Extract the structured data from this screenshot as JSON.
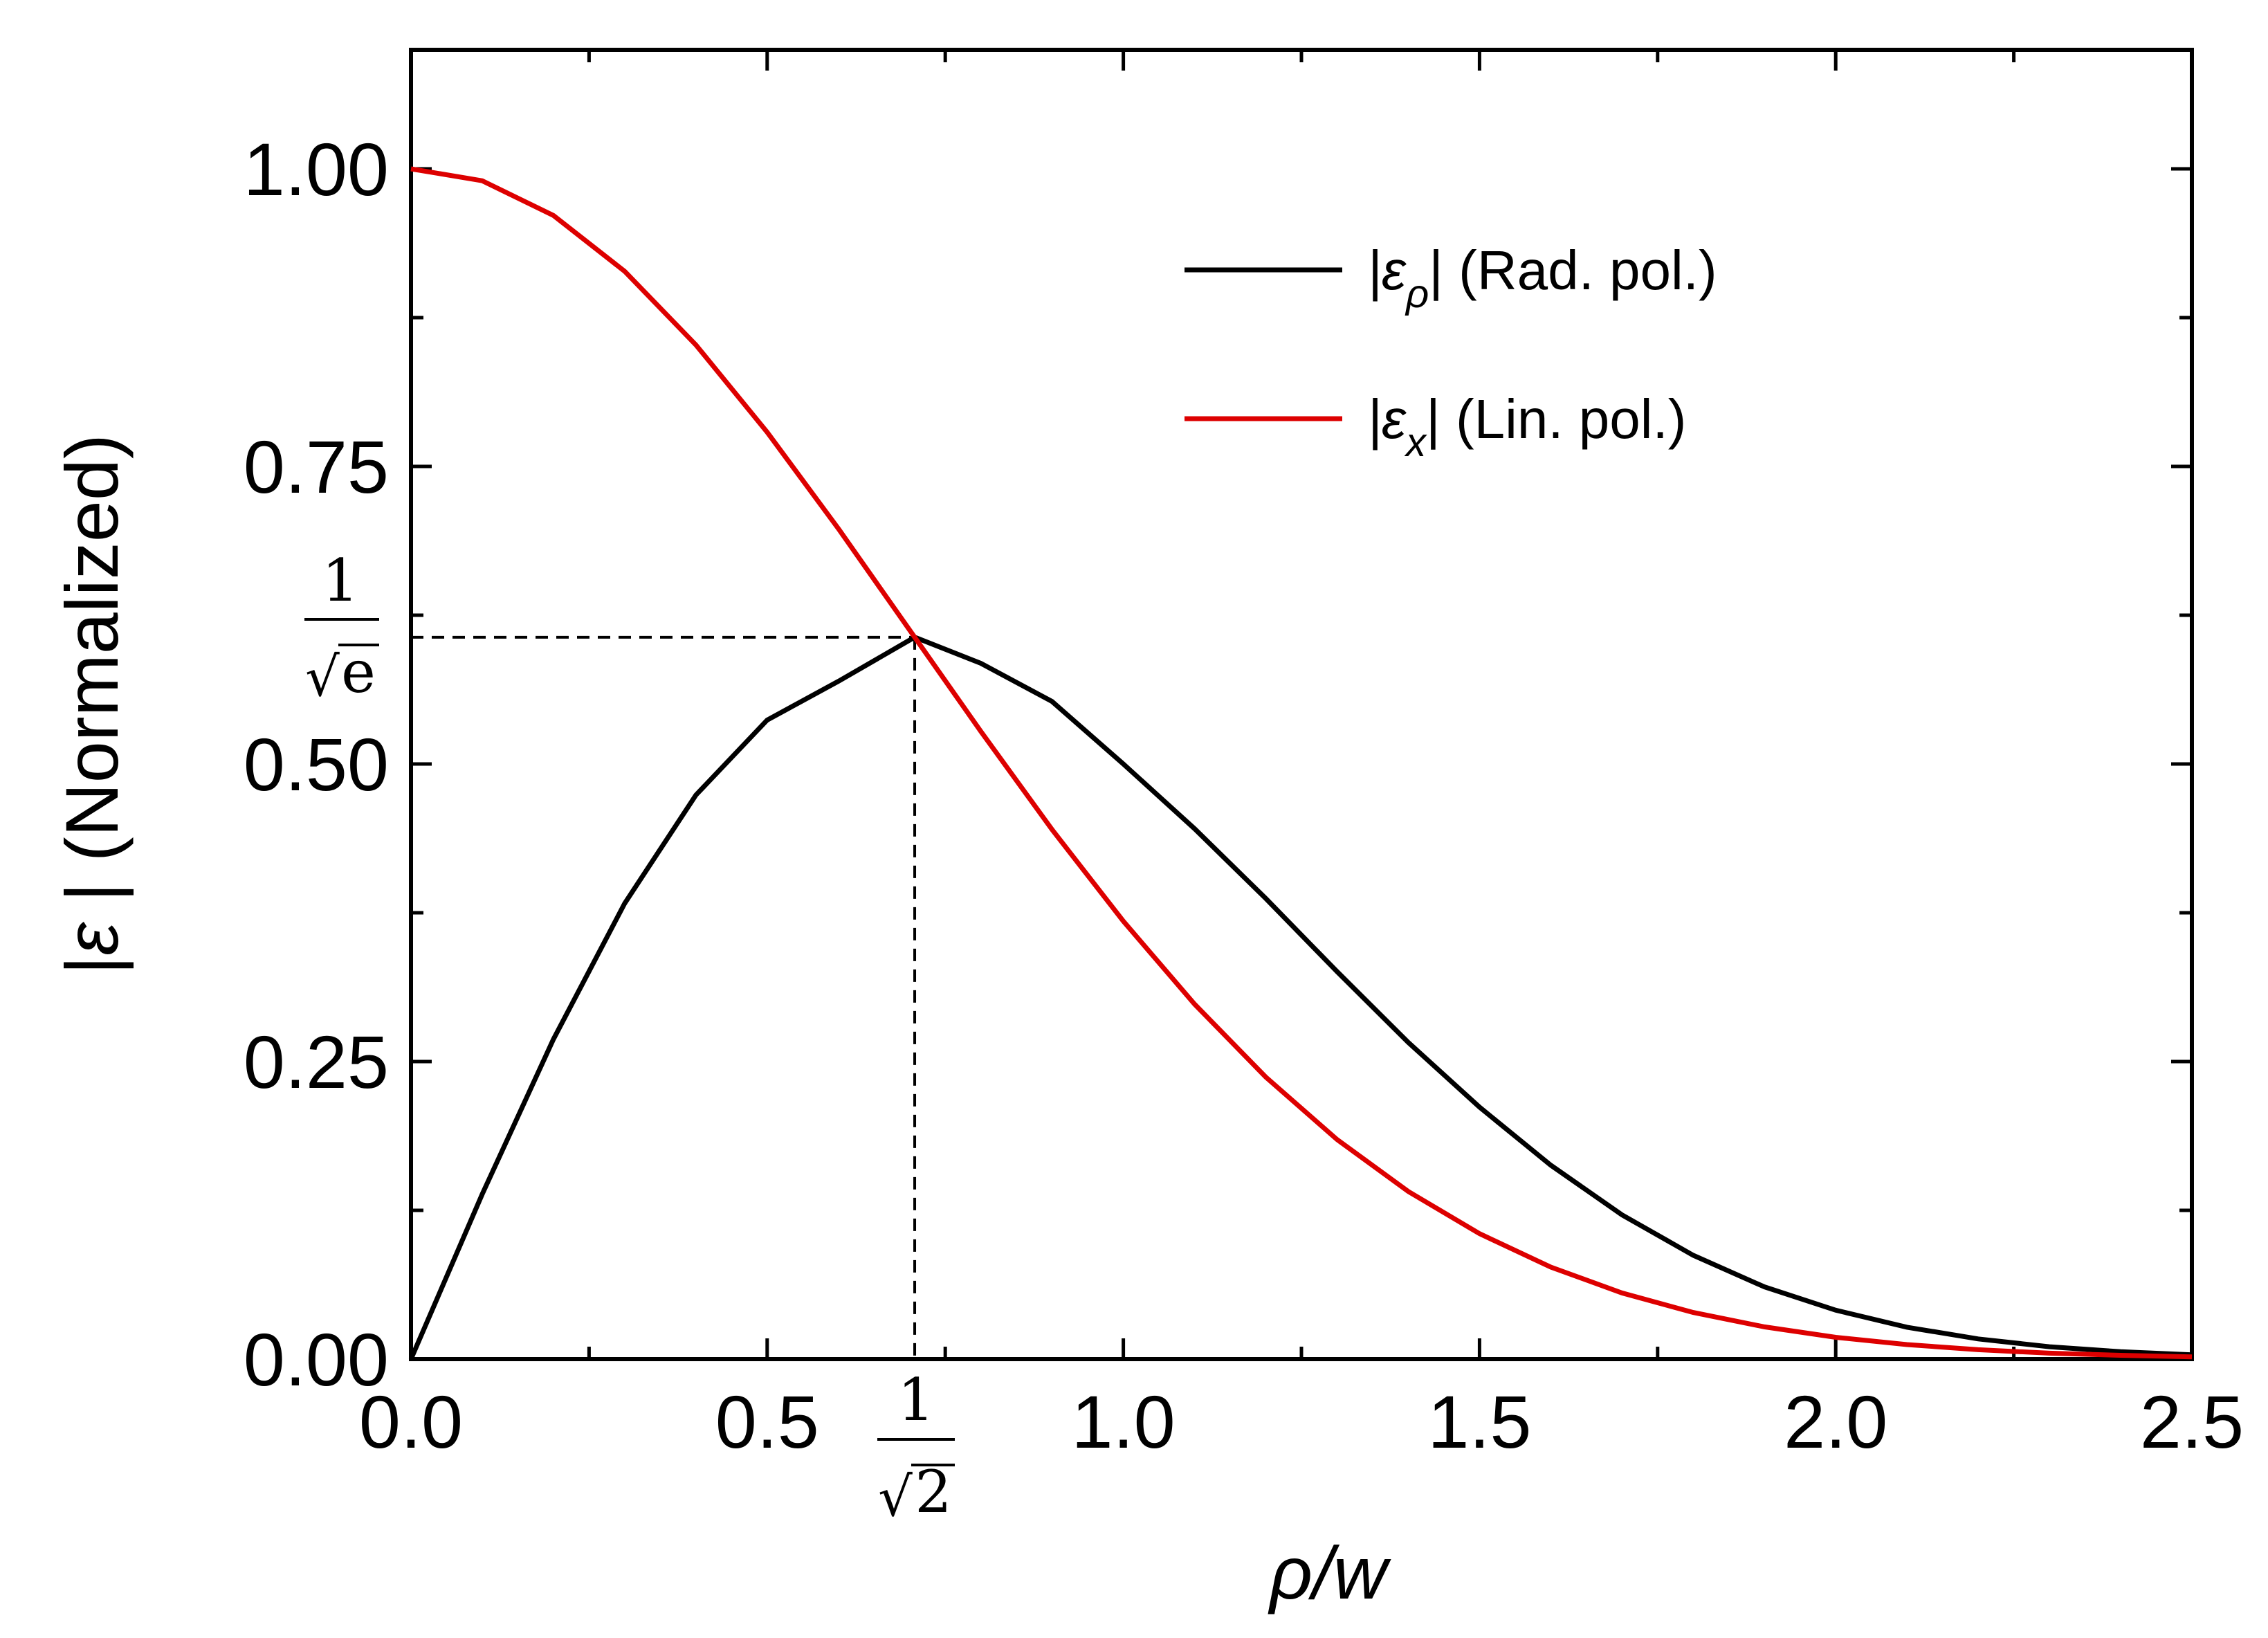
{
  "chart_data": {
    "type": "line",
    "title": "",
    "xlabel_main": "ρ",
    "xlabel_rest": "/w",
    "ylabel_abs": "|",
    "ylabel_symbol": "ε",
    "ylabel_rest": " | (Normalized)",
    "xlim": [
      0.0,
      2.5
    ],
    "ylim": [
      0.0,
      1.1
    ],
    "x_ticks": [
      "0.0",
      "0.5",
      "1.0",
      "1.5",
      "2.0",
      "2.5"
    ],
    "y_ticks": [
      "0.00",
      "0.25",
      "0.50",
      "0.75",
      "1.00"
    ],
    "grid": false,
    "legend_position": "top-right",
    "series": [
      {
        "name": "|ερ| (Rad. pol.)",
        "legend_main": "|ε",
        "legend_sub": "ρ",
        "legend_tail": "| (Rad. pol.)",
        "color": "#000000",
        "x": [
          0.0,
          0.1,
          0.2,
          0.3,
          0.4,
          0.5,
          0.6,
          0.7071,
          0.8,
          0.9,
          1.0,
          1.1,
          1.2,
          1.3,
          1.4,
          1.5,
          1.6,
          1.7,
          1.8,
          1.9,
          2.0,
          2.1,
          2.2,
          2.3,
          2.4,
          2.5
        ],
        "y": [
          0.0,
          0.1386,
          0.2688,
          0.3829,
          0.4739,
          0.5369,
          0.5695,
          0.6065,
          0.5846,
          0.5525,
          0.5,
          0.4456,
          0.387,
          0.3256,
          0.2661,
          0.2117,
          0.1629,
          0.1212,
          0.0872,
          0.0607,
          0.0411,
          0.0268,
          0.017,
          0.0104,
          0.0062,
          0.0036
        ]
      },
      {
        "name": "|εx| (Lin. pol.)",
        "legend_main": "|ε",
        "legend_sub": "x",
        "legend_tail": "| (Lin. pol.)",
        "color": "#dd0000",
        "x": [
          0.0,
          0.1,
          0.2,
          0.3,
          0.4,
          0.5,
          0.6,
          0.7071,
          0.8,
          0.9,
          1.0,
          1.1,
          1.2,
          1.3,
          1.4,
          1.5,
          1.6,
          1.7,
          1.8,
          1.9,
          2.0,
          2.1,
          2.2,
          2.3,
          2.4,
          2.5
        ],
        "y": [
          1.0,
          0.99,
          0.9608,
          0.9139,
          0.8521,
          0.7788,
          0.6977,
          0.6065,
          0.5273,
          0.4449,
          0.3679,
          0.2982,
          0.2369,
          0.1845,
          0.1409,
          0.1054,
          0.0773,
          0.0556,
          0.0392,
          0.0271,
          0.0183,
          0.0122,
          0.0079,
          0.005,
          0.0032,
          0.0019
        ]
      }
    ],
    "annotations": {
      "peak_x": 0.7071,
      "peak_y": 0.6065,
      "x_marker_numerator": "1",
      "x_marker_denominator": "2",
      "y_marker_numerator": "1",
      "y_marker_denominator": "e",
      "sqrt_symbol": "√"
    }
  }
}
